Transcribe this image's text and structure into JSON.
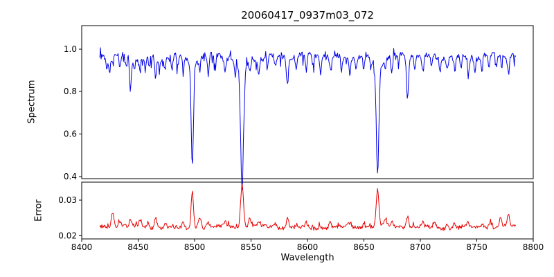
{
  "figure": {
    "title": "20060417_0937m03_072",
    "xlabel": "Wavelength",
    "background": "#ffffff"
  },
  "chart_data": [
    {
      "type": "line",
      "name": "spectrum",
      "ylabel": "Spectrum",
      "color": "#0000e6",
      "grid": false,
      "legend": null,
      "xlim": [
        8400,
        8800
      ],
      "ylim": [
        0.39,
        1.11
      ],
      "xtick_values": [
        8400,
        8450,
        8500,
        8550,
        8600,
        8650,
        8700,
        8750,
        8800
      ],
      "xtick_labels": [
        "8400",
        "8450",
        "8500",
        "8550",
        "8600",
        "8650",
        "8700",
        "8750",
        "8800"
      ],
      "show_xtick_labels": false,
      "ytick_values": [
        0.4,
        0.6,
        0.8,
        1.0
      ],
      "ytick_labels": [
        "0.4",
        "0.6",
        "0.8",
        "1.0"
      ],
      "x_start": 8416,
      "x_end": 8785,
      "step": 0.6,
      "continuum": 0.965,
      "noise": 0.013,
      "ymax_clip": 1.055,
      "noise_seed": 7,
      "absorption_lines_format": "[center_wavelength, depth, sigma]",
      "absorption_lines": [
        [
          8422.5,
          0.06,
          0.7
        ],
        [
          8424.8,
          0.09,
          0.7
        ],
        [
          8427.6,
          0.05,
          0.7
        ],
        [
          8433.9,
          0.07,
          0.8
        ],
        [
          8439.0,
          0.05,
          0.7
        ],
        [
          8443.2,
          0.155,
          0.8
        ],
        [
          8446.5,
          0.06,
          0.7
        ],
        [
          8451.0,
          0.05,
          0.7
        ],
        [
          8456.3,
          0.07,
          0.7
        ],
        [
          8459.8,
          0.05,
          0.7
        ],
        [
          8465.5,
          0.1,
          0.8
        ],
        [
          8468.8,
          0.06,
          0.7
        ],
        [
          8473.7,
          0.05,
          0.7
        ],
        [
          8480.0,
          0.06,
          0.7
        ],
        [
          8485.0,
          0.05,
          0.7
        ],
        [
          8490.2,
          0.07,
          0.7
        ],
        [
          8498.0,
          0.455,
          1.0
        ],
        [
          8498.0,
          0.05,
          3.5
        ],
        [
          8504.5,
          0.06,
          0.7
        ],
        [
          8512.2,
          0.08,
          0.8
        ],
        [
          8518.1,
          0.06,
          0.7
        ],
        [
          8526.9,
          0.08,
          0.8
        ],
        [
          8536.2,
          0.07,
          0.7
        ],
        [
          8542.1,
          0.56,
          1.3
        ],
        [
          8542.1,
          0.06,
          4.0
        ],
        [
          8549.0,
          0.06,
          0.7
        ],
        [
          8556.8,
          0.07,
          0.7
        ],
        [
          8564.5,
          0.06,
          0.7
        ],
        [
          8571.6,
          0.05,
          0.7
        ],
        [
          8582.3,
          0.12,
          0.9
        ],
        [
          8590.0,
          0.06,
          0.7
        ],
        [
          8598.8,
          0.08,
          0.8
        ],
        [
          8605.0,
          0.05,
          0.7
        ],
        [
          8611.5,
          0.07,
          0.7
        ],
        [
          8620.6,
          0.08,
          0.8
        ],
        [
          8630.0,
          0.06,
          0.7
        ],
        [
          8637.5,
          0.07,
          0.7
        ],
        [
          8643.0,
          0.05,
          0.7
        ],
        [
          8650.0,
          0.06,
          0.7
        ],
        [
          8656.0,
          0.05,
          0.7
        ],
        [
          8662.1,
          0.5,
          1.1
        ],
        [
          8662.1,
          0.05,
          3.5
        ],
        [
          8669.0,
          0.06,
          0.7
        ],
        [
          8674.8,
          0.08,
          0.8
        ],
        [
          8680.5,
          0.05,
          0.7
        ],
        [
          8688.6,
          0.205,
          0.9
        ],
        [
          8695.0,
          0.05,
          0.7
        ],
        [
          8702.3,
          0.08,
          0.8
        ],
        [
          8710.0,
          0.06,
          0.7
        ],
        [
          8717.5,
          0.07,
          0.7
        ],
        [
          8724.0,
          0.05,
          0.7
        ],
        [
          8730.5,
          0.07,
          0.7
        ],
        [
          8736.0,
          0.05,
          0.7
        ],
        [
          8742.5,
          0.07,
          0.7
        ],
        [
          8748.0,
          0.05,
          0.7
        ],
        [
          8754.5,
          0.06,
          0.7
        ],
        [
          8761.0,
          0.07,
          0.7
        ],
        [
          8767.5,
          0.06,
          0.7
        ],
        [
          8772.0,
          0.05,
          0.7
        ],
        [
          8778.0,
          0.08,
          0.8
        ]
      ]
    },
    {
      "type": "line",
      "name": "error",
      "ylabel": "Error",
      "color": "#e60000",
      "grid": false,
      "legend": null,
      "xlim": [
        8400,
        8800
      ],
      "ylim": [
        0.0191,
        0.0351
      ],
      "xtick_values": [
        8400,
        8450,
        8500,
        8550,
        8600,
        8650,
        8700,
        8750,
        8800
      ],
      "xtick_labels": [
        "8400",
        "8450",
        "8500",
        "8550",
        "8600",
        "8650",
        "8700",
        "8750",
        "8800"
      ],
      "show_xtick_labels": true,
      "ytick_values": [
        0.02,
        0.03
      ],
      "ytick_labels": [
        "0.02",
        "0.03"
      ],
      "x_start": 8416,
      "x_end": 8785,
      "step": 0.6,
      "baseline": 0.0224,
      "noise": 0.0005,
      "ymax_clip": 0.0349,
      "noise_seed": 13,
      "peaks_format": "[center_wavelength, height, sigma]",
      "peaks": [
        [
          8427.5,
          0.004,
          1.3
        ],
        [
          8434.0,
          0.0015,
          1.0
        ],
        [
          8443.2,
          0.002,
          1.0
        ],
        [
          8452.0,
          0.0018,
          1.2
        ],
        [
          8459.0,
          0.0015,
          1.0
        ],
        [
          8465.5,
          0.0028,
          1.1
        ],
        [
          8474.0,
          0.0012,
          1.0
        ],
        [
          8490.0,
          0.0015,
          1.0
        ],
        [
          8498.0,
          0.0105,
          1.1
        ],
        [
          8504.5,
          0.0028,
          1.4
        ],
        [
          8512.0,
          0.0015,
          1.0
        ],
        [
          8527.0,
          0.0014,
          1.0
        ],
        [
          8542.1,
          0.0125,
          1.2
        ],
        [
          8549.0,
          0.002,
          1.1
        ],
        [
          8557.0,
          0.0013,
          1.0
        ],
        [
          8571.0,
          0.0012,
          1.0
        ],
        [
          8582.3,
          0.0028,
          1.0
        ],
        [
          8599.0,
          0.0014,
          1.0
        ],
        [
          8611.0,
          0.0012,
          1.0
        ],
        [
          8620.0,
          0.0016,
          1.0
        ],
        [
          8637.0,
          0.0012,
          1.0
        ],
        [
          8650.0,
          0.001,
          1.0
        ],
        [
          8662.1,
          0.0108,
          1.1
        ],
        [
          8669.0,
          0.0018,
          1.0
        ],
        [
          8675.0,
          0.0016,
          1.0
        ],
        [
          8688.6,
          0.0032,
          1.0
        ],
        [
          8702.0,
          0.0014,
          1.0
        ],
        [
          8713.0,
          0.0013,
          1.0
        ],
        [
          8724.0,
          0.0012,
          1.0
        ],
        [
          8730.0,
          0.0013,
          1.0
        ],
        [
          8742.0,
          0.0014,
          1.0
        ],
        [
          8755.0,
          0.0013,
          1.0
        ],
        [
          8762.0,
          0.0018,
          1.0
        ],
        [
          8771.0,
          0.0026,
          1.0
        ],
        [
          8778.0,
          0.0032,
          1.1
        ]
      ]
    }
  ]
}
